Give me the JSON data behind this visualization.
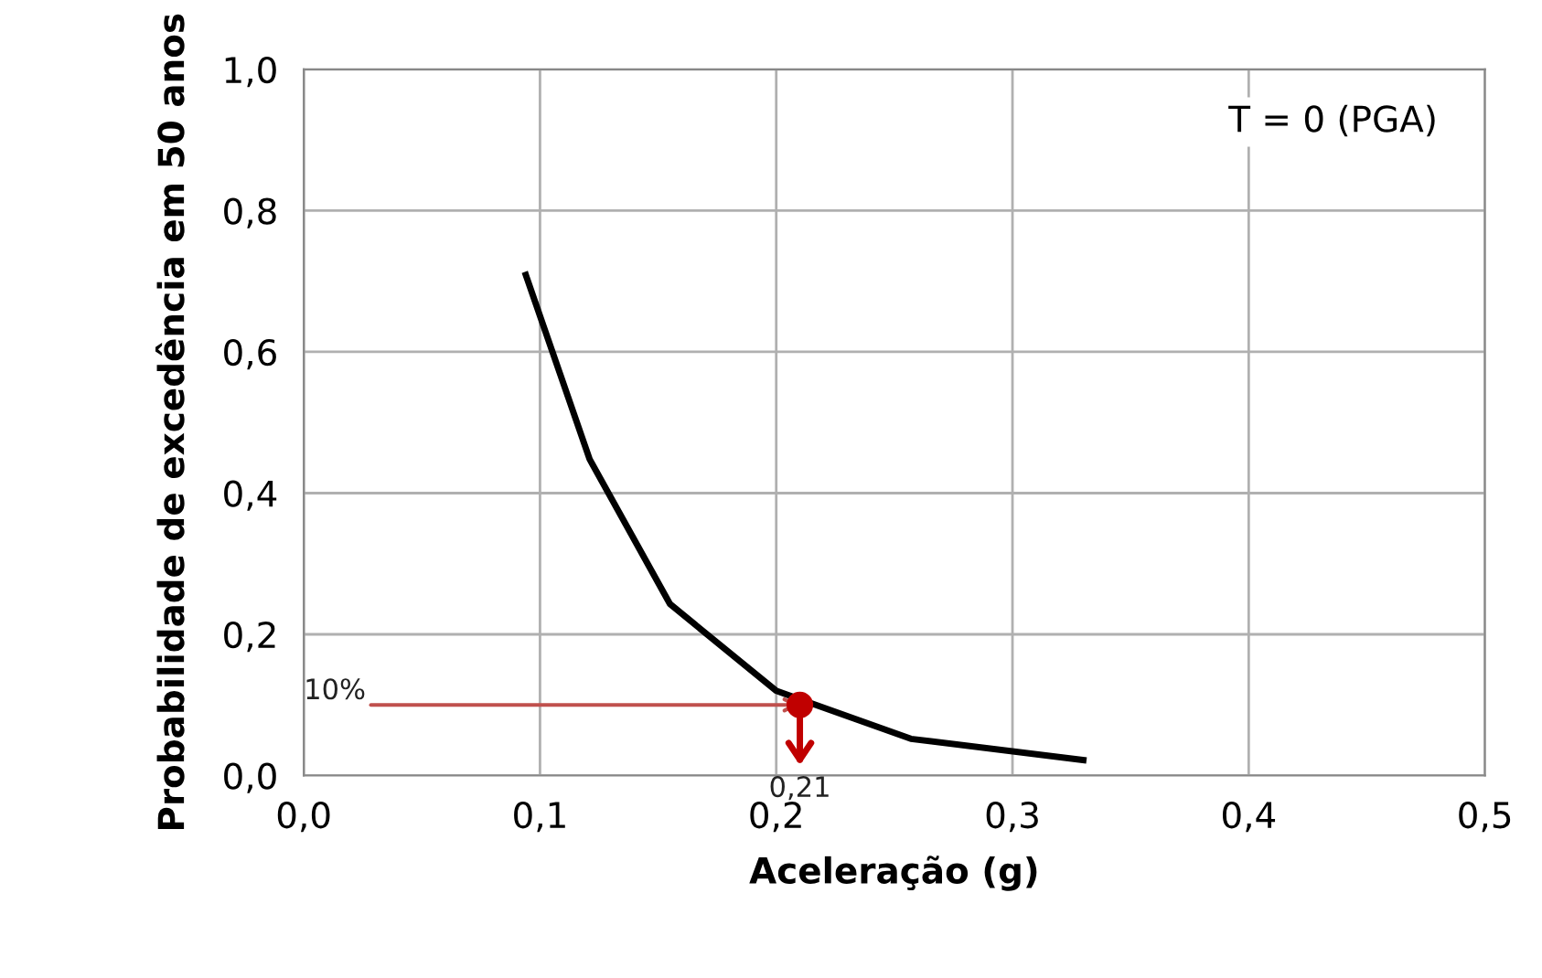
{
  "chart_data": {
    "type": "line",
    "xlabel": "Aceleração (g)",
    "ylabel": "Probabilidade de excedência em 50 anos",
    "series": [
      {
        "marker": "none",
        "color": "#000000",
        "x": [
          0.094,
          0.121,
          0.155,
          0.2,
          0.257,
          0.33
        ],
        "values": [
          0.709,
          0.448,
          0.243,
          0.12,
          0.052,
          0.022
        ]
      },
      {
        "type": "scatter",
        "marker": "circle",
        "color": "#c00000",
        "x": [
          0.21
        ],
        "values": [
          0.1
        ]
      }
    ],
    "annotations": [
      {
        "text": "10%",
        "x": 0.21,
        "y": 0.1
      },
      {
        "text": "0,21",
        "x": 0.21,
        "y": 0.1
      },
      "T = 0 (PGA)"
    ],
    "xlim": [
      0,
      0.5
    ],
    "ylim": [
      0,
      1
    ],
    "xticks": [
      {
        "value": 0,
        "label": "0,0"
      },
      {
        "value": 0.1,
        "label": "0,1"
      },
      {
        "value": 0.2,
        "label": "0,2"
      },
      {
        "value": 0.3,
        "label": "0,3"
      },
      {
        "value": 0.4,
        "label": "0,4"
      },
      {
        "value": 0.5,
        "label": "0,5"
      }
    ],
    "yticks": [
      {
        "value": 0,
        "label": "0,0"
      },
      {
        "value": 0.2,
        "label": "0,2"
      },
      {
        "value": 0.4,
        "label": "0,4"
      },
      {
        "value": 0.6,
        "label": "0,6"
      },
      {
        "value": 0.8,
        "label": "0,8"
      },
      {
        "value": 1,
        "label": "1,0"
      }
    ],
    "grid": true,
    "line_style": "solid"
  }
}
